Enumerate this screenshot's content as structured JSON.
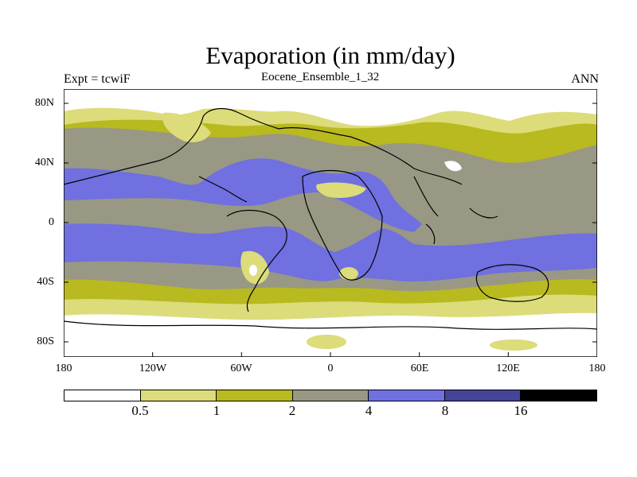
{
  "title": "Evaporation (in mm/day)",
  "subtitle_left": "Expt = tcwiF",
  "subtitle_center": "Eocene_Ensemble_1_32",
  "subtitle_right": "ANN",
  "lat_labels": [
    "80N",
    "40N",
    "0",
    "40S",
    "80S"
  ],
  "lon_labels": [
    "180",
    "120W",
    "60W",
    "0",
    "60E",
    "120E",
    "180"
  ],
  "colorbar": {
    "colors": [
      "#ffffff",
      "#dcdc7a",
      "#b9b920",
      "#989884",
      "#7070e0",
      "#44449a",
      "#000000"
    ],
    "labels": [
      "0.5",
      "1",
      "2",
      "4",
      "8",
      "16"
    ]
  },
  "colors": {
    "lt05": "#ffffff",
    "c05_1": "#dcdc7a",
    "c1_2": "#b9b920",
    "c2_4": "#989884",
    "c4_8": "#7070e0",
    "coast": "#000000"
  }
}
